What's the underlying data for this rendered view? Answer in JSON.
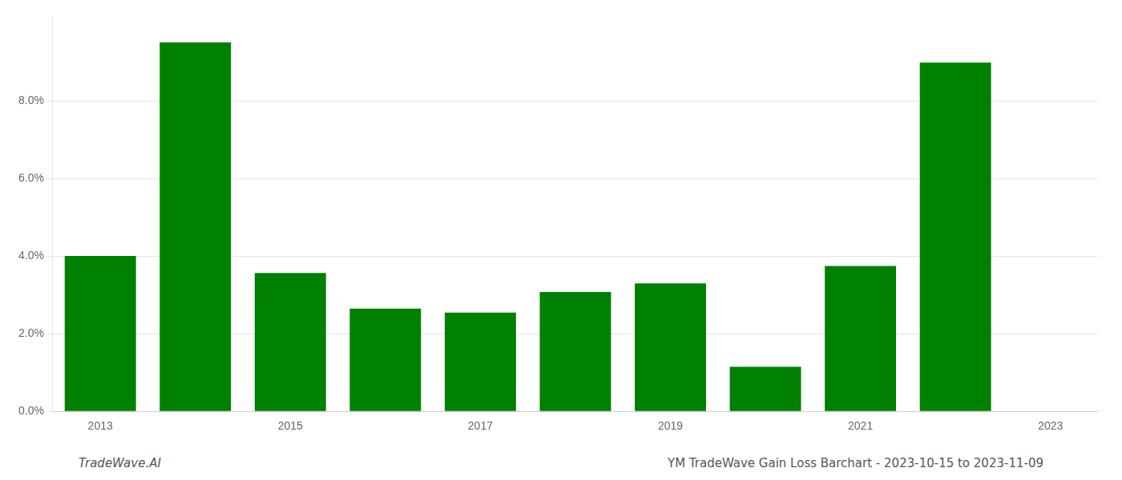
{
  "chart_data": {
    "type": "bar",
    "categories": [
      "2013",
      null,
      "2015",
      null,
      "2017",
      null,
      "2019",
      null,
      "2021",
      null,
      "2023"
    ],
    "values": [
      0.0401,
      0.0952,
      0.0357,
      0.0265,
      0.0255,
      0.0308,
      0.033,
      0.0115,
      0.0375,
      0.09,
      0.0
    ],
    "color": "#008000",
    "ylim": [
      0,
      0.102
    ],
    "yticks": [
      {
        "value": 0.0,
        "label": "0.0%"
      },
      {
        "value": 0.02,
        "label": "2.0%"
      },
      {
        "value": 0.04,
        "label": "4.0%"
      },
      {
        "value": 0.06,
        "label": "6.0%"
      },
      {
        "value": 0.08,
        "label": "8.0%"
      }
    ],
    "grid": true,
    "annotations": [
      "TradeWave.AI",
      "YM TradeWave Gain Loss Barchart - 2023-10-15 to 2023-11-09"
    ]
  }
}
